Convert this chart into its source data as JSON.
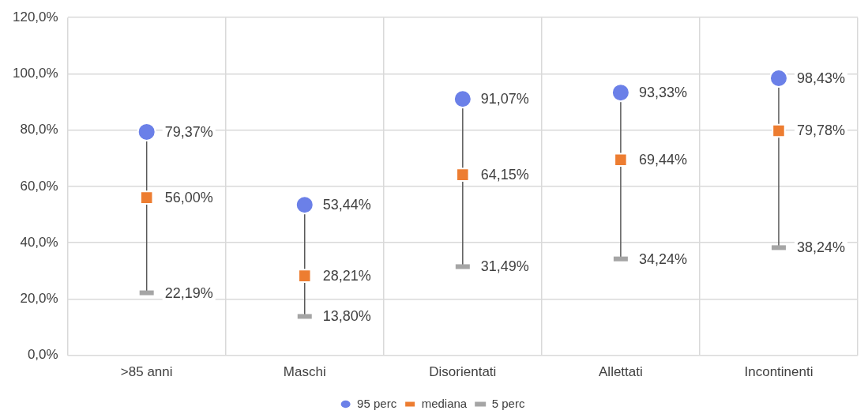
{
  "chart_data": {
    "type": "scatter",
    "categories": [
      ">85 anni",
      "Maschi",
      "Disorientati",
      "Allettati",
      "Incontinenti"
    ],
    "series": [
      {
        "name": "95 perc",
        "color": "#6b80e8",
        "marker": "circle",
        "values": [
          79.37,
          53.44,
          91.07,
          93.33,
          98.43
        ],
        "value_labels": [
          "79,37%",
          "53,44%",
          "91,07%",
          "93,33%",
          "98,43%"
        ]
      },
      {
        "name": "mediana",
        "color": "#ed7d31",
        "marker": "square",
        "values": [
          56.0,
          28.21,
          64.15,
          69.44,
          79.78
        ],
        "value_labels": [
          "56,00%",
          "28,21%",
          "64,15%",
          "69,44%",
          "79,78%"
        ]
      },
      {
        "name": "5 perc",
        "color": "#a5a5a5",
        "values": [
          22.19,
          13.8,
          31.49,
          34.24,
          38.24
        ],
        "value_labels": [
          "22,19%",
          "13,80%",
          "31,49%",
          "34,24%",
          "38,24%"
        ]
      }
    ],
    "ylim": [
      0,
      120
    ],
    "yticks": [
      {
        "value": 0,
        "label": "0,0%"
      },
      {
        "value": 20,
        "label": "20,0%"
      },
      {
        "value": 40,
        "label": "40,0%"
      },
      {
        "value": 60,
        "label": "60,0%"
      },
      {
        "value": 80,
        "label": "80,0%"
      },
      {
        "value": 100,
        "label": "100,0%"
      },
      {
        "value": 120,
        "label": "120,0%"
      }
    ],
    "grid": true,
    "legend": "bottom"
  }
}
